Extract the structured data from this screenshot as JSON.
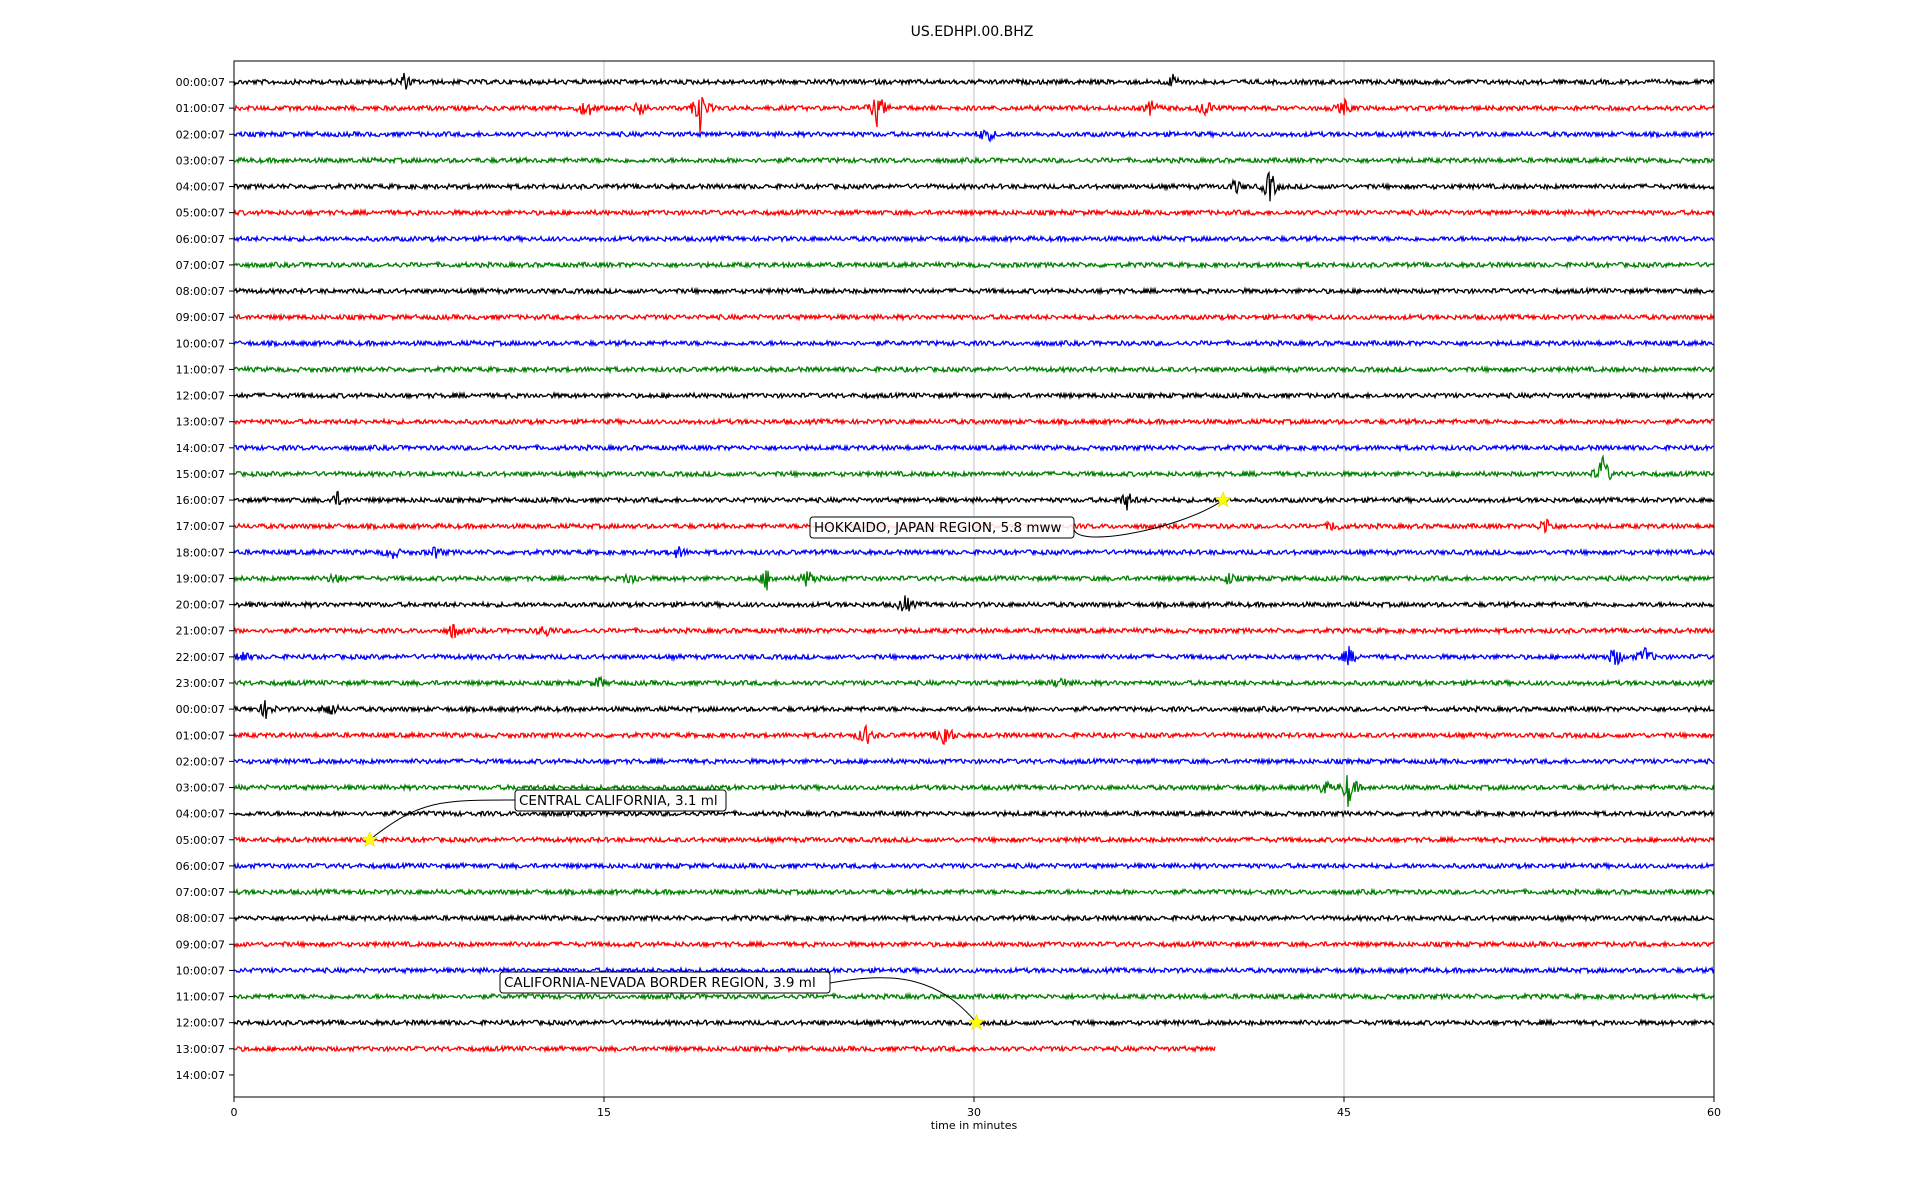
{
  "chart_data": {
    "type": "line",
    "title": "US.EDHPI.00.BHZ",
    "xlabel": "time in minutes",
    "ylabel": "",
    "xlim": [
      0,
      60
    ],
    "xticks": [
      0,
      15,
      30,
      45,
      60
    ],
    "grid": "vertical",
    "trace_colors": [
      "#000000",
      "#ff0000",
      "#0000ff",
      "#008000"
    ],
    "row_labels": [
      "00:00:07",
      "01:00:07",
      "02:00:07",
      "03:00:07",
      "04:00:07",
      "05:00:07",
      "06:00:07",
      "07:00:07",
      "08:00:07",
      "09:00:07",
      "10:00:07",
      "11:00:07",
      "12:00:07",
      "13:00:07",
      "14:00:07",
      "15:00:07",
      "16:00:07",
      "17:00:07",
      "18:00:07",
      "19:00:07",
      "20:00:07",
      "21:00:07",
      "22:00:07",
      "23:00:07",
      "00:00:07",
      "01:00:07",
      "02:00:07",
      "03:00:07",
      "04:00:07",
      "05:00:07",
      "06:00:07",
      "07:00:07",
      "08:00:07",
      "09:00:07",
      "10:00:07",
      "11:00:07",
      "12:00:07",
      "13:00:07",
      "14:00:07"
    ],
    "last_trace_end_minute": 39.8,
    "bursts": [
      {
        "row": 0,
        "minute": 6.9,
        "amp": 0.7
      },
      {
        "row": 0,
        "minute": 38.1,
        "amp": 0.6
      },
      {
        "row": 1,
        "minute": 14.3,
        "amp": 1.0
      },
      {
        "row": 1,
        "minute": 16.5,
        "amp": 0.7
      },
      {
        "row": 1,
        "minute": 18.9,
        "amp": 2.0
      },
      {
        "row": 1,
        "minute": 26.1,
        "amp": 1.7
      },
      {
        "row": 1,
        "minute": 37.2,
        "amp": 0.7
      },
      {
        "row": 1,
        "minute": 39.4,
        "amp": 0.8
      },
      {
        "row": 1,
        "minute": 45.0,
        "amp": 0.7
      },
      {
        "row": 2,
        "minute": 30.5,
        "amp": 0.9
      },
      {
        "row": 4,
        "minute": 42.0,
        "amp": 1.5
      },
      {
        "row": 4,
        "minute": 40.6,
        "amp": 0.6
      },
      {
        "row": 15,
        "minute": 55.5,
        "amp": 1.7
      },
      {
        "row": 16,
        "minute": 4.2,
        "amp": 0.6
      },
      {
        "row": 16,
        "minute": 36.2,
        "amp": 0.8
      },
      {
        "row": 17,
        "minute": 44.6,
        "amp": 0.5
      },
      {
        "row": 17,
        "minute": 53.2,
        "amp": 0.8
      },
      {
        "row": 18,
        "minute": 6.4,
        "amp": 0.6
      },
      {
        "row": 18,
        "minute": 8.2,
        "amp": 0.5
      },
      {
        "row": 18,
        "minute": 18.0,
        "amp": 0.5
      },
      {
        "row": 19,
        "minute": 4.1,
        "amp": 0.5
      },
      {
        "row": 19,
        "minute": 16.1,
        "amp": 0.6
      },
      {
        "row": 19,
        "minute": 21.6,
        "amp": 0.9
      },
      {
        "row": 19,
        "minute": 23.3,
        "amp": 1.0
      },
      {
        "row": 19,
        "minute": 40.3,
        "amp": 0.5
      },
      {
        "row": 20,
        "minute": 27.2,
        "amp": 0.9
      },
      {
        "row": 21,
        "minute": 8.9,
        "amp": 0.7
      },
      {
        "row": 21,
        "minute": 12.6,
        "amp": 0.6
      },
      {
        "row": 22,
        "minute": 0.3,
        "amp": 0.6
      },
      {
        "row": 22,
        "minute": 45.2,
        "amp": 0.8
      },
      {
        "row": 22,
        "minute": 56.0,
        "amp": 1.0
      },
      {
        "row": 22,
        "minute": 57.2,
        "amp": 0.9
      },
      {
        "row": 23,
        "minute": 14.8,
        "amp": 0.5
      },
      {
        "row": 23,
        "minute": 33.5,
        "amp": 0.6
      },
      {
        "row": 24,
        "minute": 1.3,
        "amp": 0.8
      },
      {
        "row": 24,
        "minute": 3.9,
        "amp": 0.7
      },
      {
        "row": 25,
        "minute": 25.6,
        "amp": 1.0
      },
      {
        "row": 25,
        "minute": 28.8,
        "amp": 1.5
      },
      {
        "row": 27,
        "minute": 44.2,
        "amp": 0.6
      },
      {
        "row": 27,
        "minute": 45.2,
        "amp": 1.8
      }
    ],
    "annotations": [
      {
        "text": "HOKKAIDO, JAPAN REGION, 5.8 mww",
        "row": 16,
        "minute": 40.1
      },
      {
        "text": "CENTRAL CALIFORNIA, 3.1 ml",
        "row": 29,
        "minute": 5.5
      },
      {
        "text": "CALIFORNIA-NEVADA BORDER REGION, 3.9 ml",
        "row": 36,
        "minute": 30.1
      }
    ]
  }
}
